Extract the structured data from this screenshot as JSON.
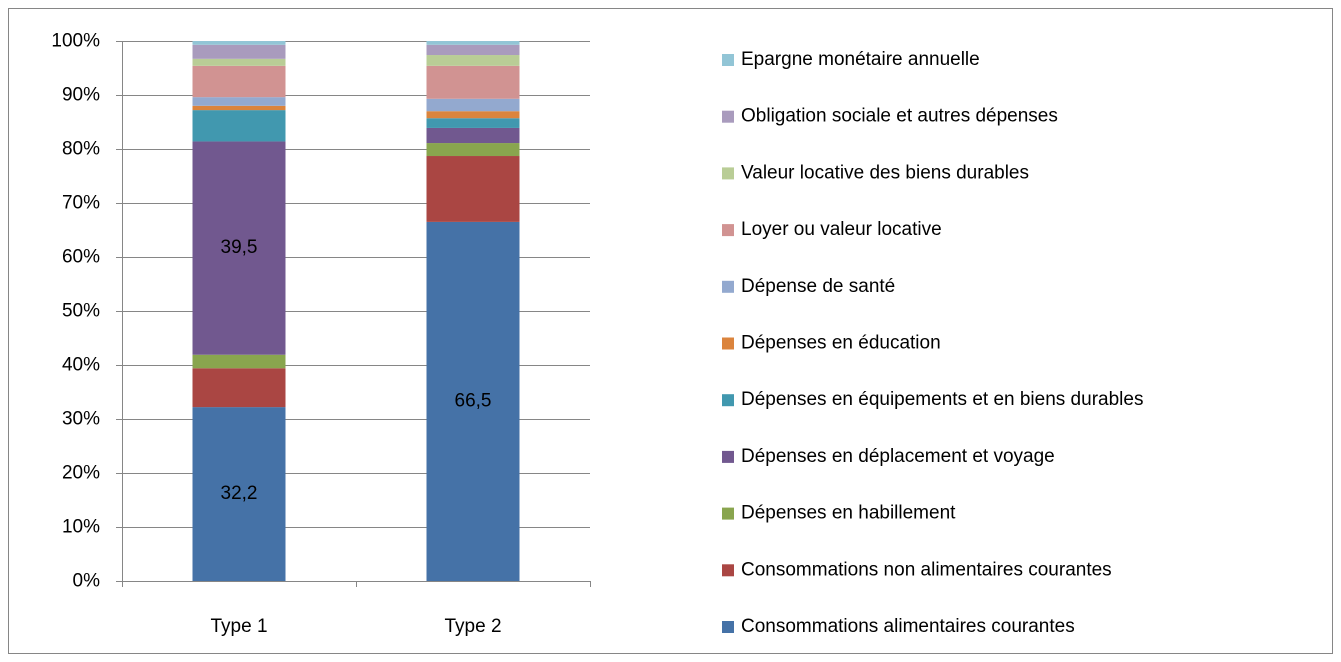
{
  "chart_data": {
    "type": "stacked_bar",
    "categories": [
      "Type 1",
      "Type 2"
    ],
    "ylim": [
      0,
      100
    ],
    "yticks": [
      {
        "value": 0,
        "label": "0%"
      },
      {
        "value": 10,
        "label": "10%"
      },
      {
        "value": 20,
        "label": "20%"
      },
      {
        "value": 30,
        "label": "30%"
      },
      {
        "value": 40,
        "label": "40%"
      },
      {
        "value": 50,
        "label": "50%"
      },
      {
        "value": 60,
        "label": "60%"
      },
      {
        "value": 70,
        "label": "70%"
      },
      {
        "value": 80,
        "label": "80%"
      },
      {
        "value": 90,
        "label": "90%"
      },
      {
        "value": 100,
        "label": "100%"
      }
    ],
    "grid": true,
    "legend": "right",
    "series": [
      {
        "name": "Consommations alimentaires courantes",
        "color": "#4572a7",
        "values": [
          32.2,
          66.5
        ],
        "value_labels": [
          "32,2",
          "66,5"
        ]
      },
      {
        "name": "Consommations non alimentaires courantes",
        "color": "#aa4643",
        "values": [
          7.2,
          12.2
        ]
      },
      {
        "name": "Dépenses en habillement",
        "color": "#89a54e",
        "values": [
          2.5,
          2.4
        ]
      },
      {
        "name": "Dépenses en déplacement et voyage",
        "color": "#71588f",
        "values": [
          39.5,
          2.8
        ],
        "value_labels": [
          "39,5",
          null
        ]
      },
      {
        "name": "Dépenses en équipements et en biens durables",
        "color": "#4198af",
        "values": [
          5.8,
          1.8
        ]
      },
      {
        "name": "Dépenses en éducation",
        "color": "#db843d",
        "values": [
          0.8,
          1.3
        ]
      },
      {
        "name": "Dépense de santé",
        "color": "#93a9cf",
        "values": [
          1.6,
          2.3
        ]
      },
      {
        "name": "Loyer ou valeur locative",
        "color": "#d19392",
        "values": [
          5.8,
          6.1
        ]
      },
      {
        "name": "Valeur locative des biens durables",
        "color": "#b9cd96",
        "values": [
          1.3,
          2.0
        ]
      },
      {
        "name": "Obligation sociale et autres dépenses",
        "color": "#a99bbd",
        "values": [
          2.6,
          1.9
        ]
      },
      {
        "name": "Epargne monétaire annuelle",
        "color": "#92c5d6",
        "values": [
          0.7,
          0.7
        ]
      }
    ]
  }
}
